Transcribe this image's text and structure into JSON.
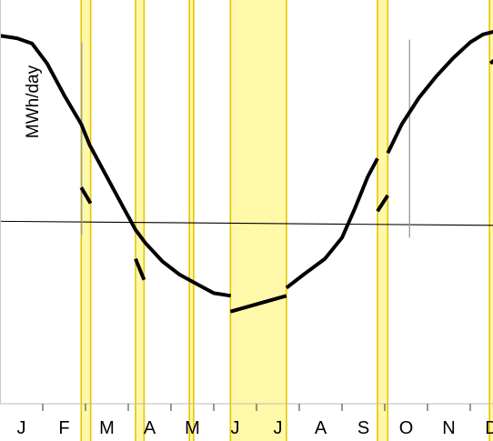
{
  "chart_data": {
    "type": "line",
    "ylabel": "MWh/day",
    "months": [
      "J",
      "F",
      "M",
      "A",
      "M",
      "J",
      "J",
      "A",
      "S",
      "O",
      "N",
      "D"
    ],
    "highlight_color": "#fff8a8",
    "highlight_edge_color": "#e6c700",
    "line_color": "#000000",
    "highlight_bands": [
      {
        "start": 1.9,
        "end": 2.12
      },
      {
        "start": 3.17,
        "end": 3.37
      },
      {
        "start": 4.43,
        "end": 4.53
      },
      {
        "start": 5.39,
        "end": 6.7
      },
      {
        "start": 8.83,
        "end": 9.07
      },
      {
        "start": 11.45,
        "end": 11.55
      }
    ],
    "series": [
      {
        "values": [
          [
            0.0,
            0.975
          ],
          [
            0.4,
            0.965
          ],
          [
            0.75,
            0.945
          ],
          [
            1.1,
            0.87
          ],
          [
            1.5,
            0.75
          ],
          [
            1.9,
            0.64
          ],
          [
            2.1,
            0.56
          ],
          [
            2.5,
            0.44
          ],
          [
            2.9,
            0.32
          ],
          [
            3.17,
            0.24
          ],
          [
            3.4,
            0.19
          ],
          [
            3.8,
            0.12
          ],
          [
            4.2,
            0.07
          ],
          [
            4.6,
            0.035
          ],
          [
            5.0,
            0.0
          ],
          [
            5.4,
            -0.01
          ]
        ]
      },
      {
        "values": [
          [
            1.9,
            0.4
          ],
          [
            2.12,
            0.34
          ]
        ]
      },
      {
        "values": [
          [
            3.17,
            0.13
          ],
          [
            3.37,
            0.05
          ]
        ]
      },
      {
        "values": [
          [
            5.39,
            -0.07
          ],
          [
            6.7,
            -0.01
          ]
        ]
      },
      {
        "values": [
          [
            6.7,
            0.02
          ],
          [
            7.1,
            0.07
          ],
          [
            7.6,
            0.13
          ],
          [
            8.0,
            0.21
          ],
          [
            8.3,
            0.32
          ],
          [
            8.6,
            0.44
          ],
          [
            8.83,
            0.51
          ]
        ]
      },
      {
        "values": [
          [
            8.83,
            0.31
          ],
          [
            9.07,
            0.37
          ]
        ]
      },
      {
        "values": [
          [
            9.07,
            0.53
          ],
          [
            9.4,
            0.64
          ],
          [
            9.8,
            0.74
          ],
          [
            10.2,
            0.82
          ],
          [
            10.6,
            0.89
          ],
          [
            11.0,
            0.95
          ],
          [
            11.3,
            0.98
          ],
          [
            11.55,
            0.99
          ]
        ]
      },
      {
        "values": [
          [
            11.47,
            0.87
          ],
          [
            11.7,
            0.9
          ]
        ]
      }
    ],
    "reference_lines": [
      {
        "type": "trend",
        "values": [
          [
            0.0,
            0.272
          ],
          [
            12.0,
            0.256
          ]
        ]
      },
      {
        "type": "vertical",
        "x": 1.91,
        "y_range": [
          0.22,
          0.95
        ]
      },
      {
        "type": "vertical",
        "x": 9.58,
        "y_range": [
          0.21,
          0.96
        ]
      }
    ],
    "xlim": [
      0.0,
      11.6
    ],
    "ylim": [
      -0.56,
      1.11
    ],
    "grid": false,
    "legend": "none"
  }
}
